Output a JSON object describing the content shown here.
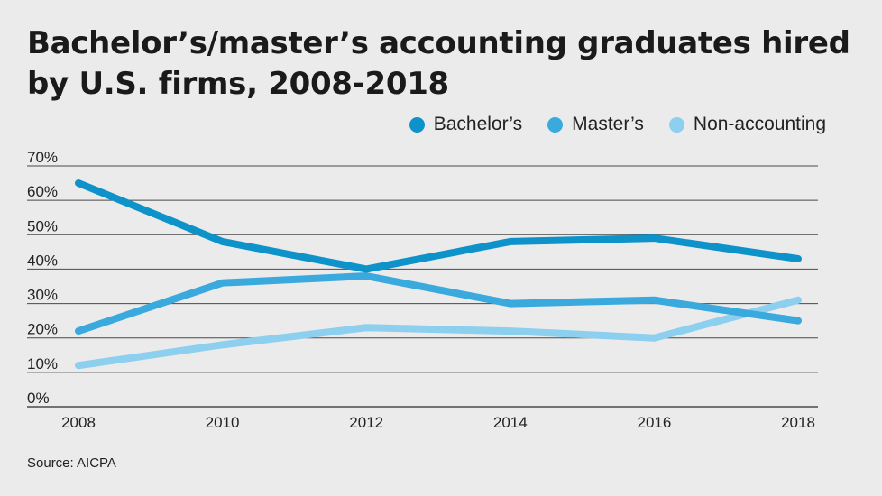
{
  "title": "Bachelor’s/master’s accounting graduates hired by U.S. firms, 2008-2018",
  "source": "Source: AICPA",
  "colors": {
    "bachelors": "#0d92ca",
    "masters": "#3aa9dd",
    "non_accounting": "#8dcfee",
    "grid": "#4a4a4a",
    "background": "#ebebeb"
  },
  "chart_data": {
    "type": "line",
    "x": [
      2008,
      2010,
      2012,
      2014,
      2016,
      2018
    ],
    "x_tick_labels": [
      "2008",
      "2010",
      "2012",
      "2014",
      "2016",
      "2018"
    ],
    "ylim": [
      0,
      70
    ],
    "y_ticks": [
      0,
      10,
      20,
      30,
      40,
      50,
      60,
      70
    ],
    "y_tick_labels": [
      "0%",
      "10%",
      "20%",
      "30%",
      "40%",
      "50%",
      "60%",
      "70%"
    ],
    "grid": true,
    "legend_position": "top-right",
    "series": [
      {
        "name": "Bachelor’s",
        "values": [
          65,
          48,
          40,
          48,
          49,
          43
        ]
      },
      {
        "name": "Master’s",
        "values": [
          22,
          36,
          38,
          30,
          31,
          25
        ]
      },
      {
        "name": "Non-accounting",
        "values": [
          12,
          18,
          23,
          22,
          20,
          31
        ]
      }
    ]
  }
}
